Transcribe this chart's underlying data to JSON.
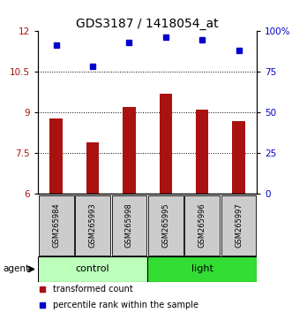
{
  "title": "GDS3187 / 1418054_at",
  "samples": [
    "GSM265984",
    "GSM265993",
    "GSM265998",
    "GSM265995",
    "GSM265996",
    "GSM265997"
  ],
  "groups": [
    "control",
    "control",
    "control",
    "light",
    "light",
    "light"
  ],
  "bar_values": [
    8.8,
    7.9,
    9.2,
    9.7,
    9.1,
    8.7
  ],
  "dot_values": [
    11.5,
    10.7,
    11.6,
    11.8,
    11.7,
    11.3
  ],
  "ylim_left": [
    6,
    12
  ],
  "ylim_right": [
    0,
    100
  ],
  "yticks_left": [
    6,
    7.5,
    9,
    10.5,
    12
  ],
  "yticks_right": [
    0,
    25,
    50,
    75,
    100
  ],
  "ytick_labels_right": [
    "0",
    "25",
    "50",
    "75",
    "100%"
  ],
  "bar_color": "#aa1111",
  "dot_color": "#0000cc",
  "control_color": "#bbffbb",
  "light_color": "#33dd33",
  "bar_bottom": 6,
  "hlines": [
    7.5,
    9.0,
    10.5
  ],
  "agent_label": "agent",
  "legend_bar": "transformed count",
  "legend_dot": "percentile rank within the sample",
  "title_fontsize": 10,
  "tick_fontsize": 7.5,
  "sample_fontsize": 6,
  "group_fontsize": 8,
  "legend_fontsize": 7
}
